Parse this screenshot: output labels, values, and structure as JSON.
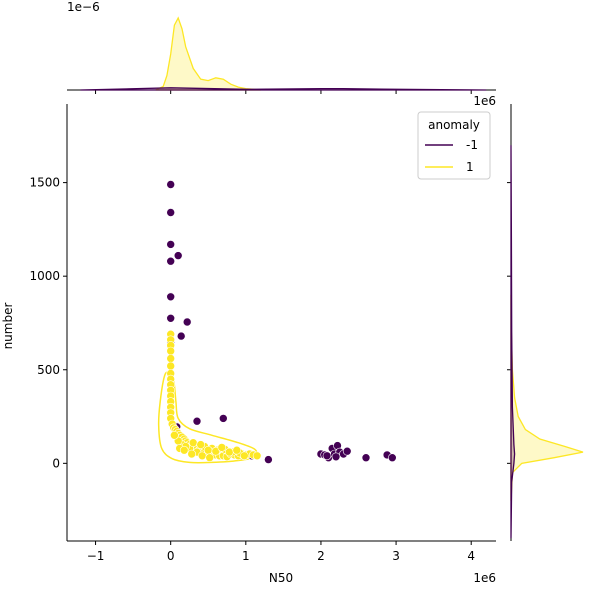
{
  "chart_data": {
    "type": "scatter",
    "title": "",
    "xlabel": "N50",
    "ylabel": "number",
    "x_offset_label": "1e6",
    "top_marginal_offset_label": "1e−6",
    "right_marginal_offset_label": "1e6",
    "xlim": [
      -1.38,
      4.33
    ],
    "ylim": [
      -415,
      1920
    ],
    "xticks": [
      -1,
      0,
      1,
      2,
      3,
      4
    ],
    "yticks": [
      0,
      500,
      1000,
      1500
    ],
    "grid": false,
    "legend": {
      "title": "anomaly",
      "placement": "top-right",
      "entries": [
        {
          "label": "-1",
          "color": "#440154"
        },
        {
          "label": "1",
          "color": "#fde725"
        }
      ]
    },
    "series": [
      {
        "name": "-1",
        "color": "#440154",
        "points": [
          [
            0.0,
            1490
          ],
          [
            0.0,
            1340
          ],
          [
            0.0,
            1170
          ],
          [
            0.1,
            1110
          ],
          [
            0.0,
            1080
          ],
          [
            0.0,
            890
          ],
          [
            0.0,
            775
          ],
          [
            0.22,
            755
          ],
          [
            0.14,
            680
          ],
          [
            0.0,
            650
          ],
          [
            0.35,
            225
          ],
          [
            0.7,
            240
          ],
          [
            0.05,
            200
          ],
          [
            0.08,
            195
          ],
          [
            1.3,
            20
          ],
          [
            1.08,
            40
          ],
          [
            2.0,
            50
          ],
          [
            2.05,
            45
          ],
          [
            2.1,
            30
          ],
          [
            2.15,
            80
          ],
          [
            2.18,
            50
          ],
          [
            2.22,
            95
          ],
          [
            2.25,
            60
          ],
          [
            2.3,
            50
          ],
          [
            2.35,
            65
          ],
          [
            2.2,
            35
          ],
          [
            2.6,
            30
          ],
          [
            2.88,
            45
          ],
          [
            2.95,
            30
          ],
          [
            2.08,
            40
          ]
        ]
      },
      {
        "name": "1",
        "color": "#fde725",
        "points": [
          [
            0.0,
            690
          ],
          [
            0.0,
            660
          ],
          [
            0.0,
            630
          ],
          [
            0.0,
            600
          ],
          [
            0.0,
            560
          ],
          [
            0.0,
            520
          ],
          [
            0.0,
            480
          ],
          [
            0.0,
            450
          ],
          [
            0.0,
            420
          ],
          [
            0.0,
            390
          ],
          [
            0.0,
            360
          ],
          [
            0.0,
            330
          ],
          [
            0.0,
            300
          ],
          [
            0.0,
            270
          ],
          [
            0.0,
            240
          ],
          [
            0.02,
            210
          ],
          [
            0.04,
            190
          ],
          [
            0.06,
            180
          ],
          [
            0.08,
            170
          ],
          [
            0.1,
            160
          ],
          [
            0.12,
            150
          ],
          [
            0.15,
            140
          ],
          [
            0.18,
            130
          ],
          [
            0.2,
            120
          ],
          [
            0.22,
            110
          ],
          [
            0.25,
            100
          ],
          [
            0.28,
            95
          ],
          [
            0.3,
            90
          ],
          [
            0.32,
            80
          ],
          [
            0.35,
            75
          ],
          [
            0.38,
            70
          ],
          [
            0.4,
            65
          ],
          [
            0.45,
            60
          ],
          [
            0.5,
            55
          ],
          [
            0.55,
            50
          ],
          [
            0.6,
            45
          ],
          [
            0.65,
            40
          ],
          [
            0.7,
            40
          ],
          [
            0.75,
            35
          ],
          [
            0.8,
            50
          ],
          [
            0.85,
            45
          ],
          [
            0.9,
            40
          ],
          [
            0.95,
            50
          ],
          [
            1.0,
            45
          ],
          [
            1.05,
            50
          ],
          [
            1.1,
            45
          ],
          [
            0.15,
            100
          ],
          [
            0.25,
            80
          ],
          [
            0.35,
            60
          ],
          [
            0.45,
            90
          ],
          [
            0.55,
            80
          ],
          [
            0.62,
            70
          ],
          [
            0.72,
            75
          ],
          [
            0.82,
            60
          ],
          [
            0.92,
            55
          ],
          [
            0.1,
            120
          ],
          [
            0.2,
            90
          ],
          [
            0.3,
            110
          ],
          [
            0.4,
            100
          ],
          [
            0.5,
            70
          ],
          [
            0.6,
            65
          ],
          [
            0.68,
            85
          ],
          [
            0.78,
            60
          ],
          [
            0.88,
            70
          ],
          [
            0.98,
            40
          ],
          [
            0.05,
            150
          ],
          [
            0.12,
            80
          ],
          [
            0.18,
            70
          ],
          [
            0.28,
            50
          ],
          [
            0.42,
            40
          ],
          [
            0.52,
            30
          ],
          [
            1.15,
            40
          ]
        ]
      }
    ],
    "contour_1": [
      [
        -0.08,
        470
      ],
      [
        -0.02,
        480
      ],
      [
        0.04,
        440
      ],
      [
        0.07,
        330
      ],
      [
        0.1,
        240
      ],
      [
        0.25,
        185
      ],
      [
        0.55,
        150
      ],
      [
        0.9,
        110
      ],
      [
        1.12,
        75
      ],
      [
        1.12,
        35
      ],
      [
        0.9,
        15
      ],
      [
        0.55,
        5
      ],
      [
        0.25,
        5
      ],
      [
        0.02,
        25
      ],
      [
        -0.12,
        80
      ],
      [
        -0.16,
        200
      ],
      [
        -0.14,
        330
      ],
      [
        -0.08,
        470
      ]
    ],
    "top_marginal": {
      "series": [
        {
          "name": "1",
          "color": "#fde725",
          "x": [
            -0.2,
            -0.1,
            -0.05,
            0.0,
            0.05,
            0.1,
            0.15,
            0.2,
            0.3,
            0.4,
            0.5,
            0.6,
            0.7,
            0.8,
            0.9,
            1.0,
            1.1,
            1.2
          ],
          "density": [
            0.0,
            0.05,
            0.2,
            0.5,
            0.9,
            1.0,
            0.85,
            0.6,
            0.3,
            0.15,
            0.13,
            0.17,
            0.15,
            0.08,
            0.04,
            0.02,
            0.01,
            0.0
          ]
        },
        {
          "name": "-1",
          "color": "#440154",
          "x": [
            -1.2,
            0.0,
            1.0,
            2.0,
            2.3,
            3.0,
            4.2
          ],
          "density": [
            0.0,
            0.03,
            0.01,
            0.02,
            0.02,
            0.01,
            0.0
          ]
        }
      ]
    },
    "right_marginal": {
      "series": [
        {
          "name": "1",
          "color": "#fde725",
          "y": [
            -200,
            -50,
            0,
            30,
            60,
            90,
            130,
            180,
            250,
            350,
            500,
            700,
            900
          ],
          "density": [
            0.0,
            0.02,
            0.15,
            0.6,
            1.0,
            0.75,
            0.4,
            0.2,
            0.1,
            0.05,
            0.02,
            0.005,
            0.0
          ]
        },
        {
          "name": "-1",
          "color": "#440154",
          "y": [
            -400,
            -100,
            0,
            50,
            100,
            300,
            700,
            1200,
            1700
          ],
          "density": [
            0.0,
            0.01,
            0.04,
            0.05,
            0.04,
            0.02,
            0.01,
            0.005,
            0.0
          ]
        }
      ]
    }
  }
}
